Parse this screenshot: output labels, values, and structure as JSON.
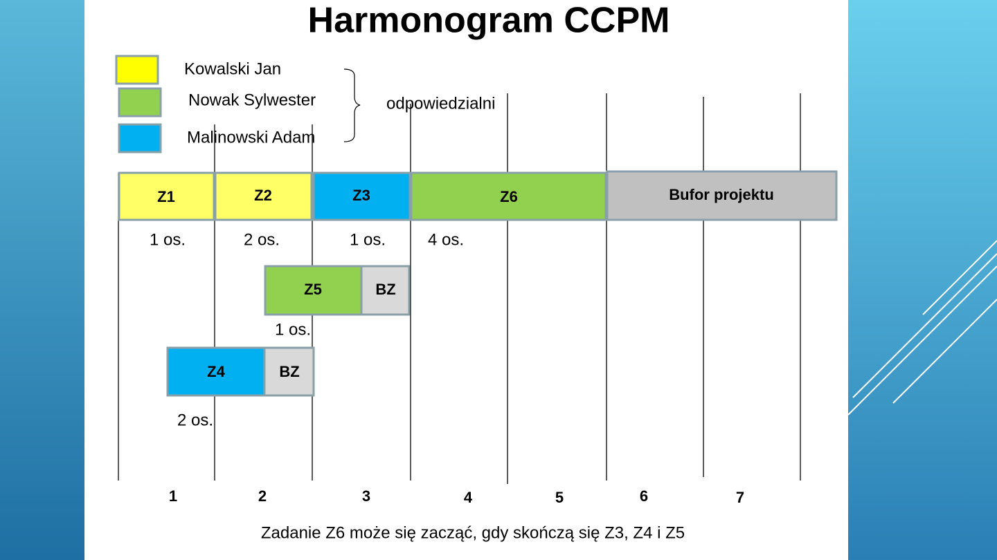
{
  "header": {
    "title": "Harmonogram CCPM"
  },
  "legend": [
    "Kowalski Jan",
    "Nowak Sylwester",
    "Malinowski Adam"
  ],
  "legend_group_label": "odpowiedzialni",
  "tasks": [
    {
      "label": "Z1",
      "people": "1 os."
    },
    {
      "label": "Z2",
      "people": "2 os."
    },
    {
      "label": "Z3",
      "people": "1 os."
    },
    {
      "label": "Z6",
      "people": "4 os."
    },
    {
      "label": "Bufor projektu"
    },
    {
      "label": "Z5",
      "buffer": "BZ",
      "people": "1 os."
    },
    {
      "label": "Z4",
      "buffer": "BZ",
      "people": "2 os."
    }
  ],
  "time_axis": [
    "1",
    "2",
    "3",
    "4",
    "5",
    "6",
    "7"
  ],
  "footnote": "Zadanie Z6 może się zacząć, gdy skończą się Z3, Z4 i Z5"
}
